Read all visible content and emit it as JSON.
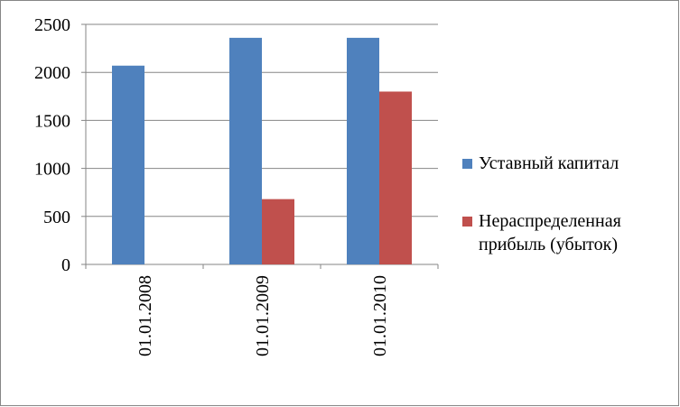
{
  "chart_data": {
    "type": "bar",
    "categories": [
      "01.01.2008",
      "01.01.2009",
      "01.01.2010"
    ],
    "series": [
      {
        "name": "Уставный капитал",
        "color": "#4f81bd",
        "values": [
          2070,
          2360,
          2360
        ]
      },
      {
        "name": "Нераспределенная прибыль (убыток)",
        "color": "#c0504d",
        "values": [
          0,
          680,
          1800
        ]
      }
    ],
    "ylim": [
      0,
      2500
    ],
    "yticks": [
      0,
      500,
      1000,
      1500,
      2000,
      2500
    ],
    "grid": true,
    "legend": "right"
  }
}
